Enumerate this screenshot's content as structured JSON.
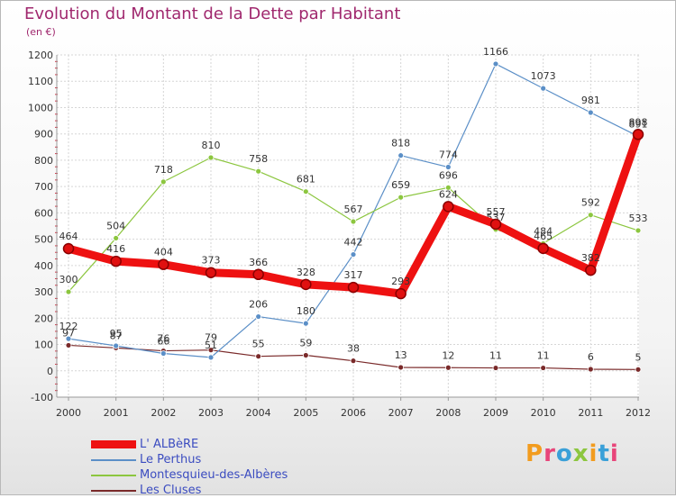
{
  "title": "Evolution du Montant de la Dette par Habitant",
  "subtitle": "(en €)",
  "logo": {
    "text": "Proxiti",
    "colors": [
      "#f29c1f",
      "#e8457a",
      "#3aa0d8",
      "#8cc63f",
      "#f29c1f",
      "#3aa0d8",
      "#e8457a"
    ]
  },
  "chart_data": {
    "type": "line",
    "x": [
      "2000",
      "2001",
      "2002",
      "2003",
      "2004",
      "2005",
      "2006",
      "2007",
      "2008",
      "2009",
      "2010",
      "2011",
      "2012"
    ],
    "ylim": [
      -100,
      1200
    ],
    "yticks": [
      -100,
      0,
      100,
      200,
      300,
      400,
      500,
      600,
      700,
      800,
      900,
      1000,
      1100,
      1200
    ],
    "grid": true,
    "legend_position": "bottom-left",
    "series": [
      {
        "name": "Les Cluses",
        "color": "#7a2a2a",
        "values": [
          97,
          87,
          76,
          79,
          55,
          59,
          38,
          13,
          12,
          11,
          11,
          6,
          5
        ],
        "labels": [
          "97",
          "87",
          "76",
          "79",
          "55",
          "59",
          "38",
          "13",
          "12",
          "11",
          "11",
          "6",
          "5"
        ]
      },
      {
        "name": "Le Perthus",
        "color": "#5b8fc7",
        "values": [
          122,
          95,
          66,
          51,
          206,
          180,
          442,
          818,
          774,
          1166,
          1073,
          981,
          891
        ],
        "labels": [
          "122",
          "95",
          "66",
          "51",
          "206",
          "180",
          "442",
          "818",
          "774",
          "1166",
          "1073",
          "981",
          "891"
        ]
      },
      {
        "name": "Montesquieu-des-Albères",
        "color": "#8cc63f",
        "values": [
          300,
          504,
          718,
          810,
          758,
          681,
          567,
          659,
          696,
          537,
          484,
          592,
          533
        ],
        "labels": [
          "300",
          "504",
          "718",
          "810",
          "758",
          "681",
          "567",
          "659",
          "696",
          "537",
          "484",
          "592",
          "533"
        ]
      },
      {
        "name": "L' ALBèRE",
        "color": "#ee1111",
        "values": [
          464,
          416,
          404,
          373,
          366,
          328,
          317,
          293,
          624,
          557,
          465,
          382,
          898
        ],
        "labels": [
          "464",
          "416",
          "404",
          "373",
          "366",
          "328",
          "317",
          "293",
          "624",
          "557",
          "465",
          "382",
          "898"
        ]
      }
    ],
    "legend": [
      "L' ALBèRE",
      "Le Perthus",
      "Montesquieu-des-Albères",
      "Les Cluses"
    ]
  }
}
